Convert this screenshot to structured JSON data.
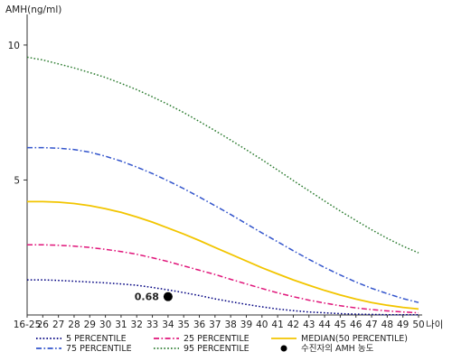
{
  "chart_data": {
    "type": "line",
    "ylabel": "AMH(ng/ml)",
    "xlabel": "나이",
    "ylim": [
      0,
      11
    ],
    "yticks": [
      {
        "value": 5,
        "label": "5"
      },
      {
        "value": 10,
        "label": "10"
      }
    ],
    "categories": [
      "16-25",
      "26",
      "27",
      "28",
      "29",
      "30",
      "31",
      "32",
      "33",
      "34",
      "35",
      "36",
      "37",
      "38",
      "39",
      "40",
      "41",
      "42",
      "43",
      "44",
      "45",
      "46",
      "47",
      "48",
      "49",
      "50"
    ],
    "series": [
      {
        "name": "5 PERCENTILE",
        "color": "#000080",
        "dash": "dot",
        "values": [
          1.3,
          1.3,
          1.28,
          1.25,
          1.22,
          1.19,
          1.15,
          1.1,
          1.02,
          0.93,
          0.83,
          0.72,
          0.6,
          0.49,
          0.39,
          0.3,
          0.22,
          0.16,
          0.11,
          0.08,
          0.05,
          0.03,
          0.02,
          0.01,
          0.01,
          0.01
        ]
      },
      {
        "name": "25 PERCENTILE",
        "color": "#e0157a",
        "dash": "dashdot",
        "values": [
          2.6,
          2.6,
          2.58,
          2.55,
          2.5,
          2.43,
          2.35,
          2.25,
          2.12,
          1.98,
          1.82,
          1.66,
          1.5,
          1.32,
          1.15,
          0.98,
          0.82,
          0.68,
          0.55,
          0.44,
          0.34,
          0.26,
          0.2,
          0.15,
          0.11,
          0.08
        ]
      },
      {
        "name": "MEDIAN(50 PERCENTILE)",
        "color": "#f2c500",
        "dash": "solid",
        "values": [
          4.2,
          4.2,
          4.18,
          4.13,
          4.05,
          3.94,
          3.8,
          3.63,
          3.44,
          3.22,
          3.0,
          2.76,
          2.5,
          2.25,
          2.0,
          1.75,
          1.52,
          1.3,
          1.1,
          0.91,
          0.74,
          0.59,
          0.46,
          0.36,
          0.28,
          0.22
        ]
      },
      {
        "name": "75 PERCENTILE",
        "color": "#3355cc",
        "dash": "dashdot",
        "values": [
          6.2,
          6.2,
          6.18,
          6.13,
          6.03,
          5.88,
          5.7,
          5.48,
          5.24,
          4.97,
          4.68,
          4.37,
          4.05,
          3.72,
          3.38,
          3.04,
          2.71,
          2.38,
          2.06,
          1.76,
          1.48,
          1.22,
          0.99,
          0.79,
          0.61,
          0.46
        ]
      },
      {
        "name": "95 PERCENTILE",
        "color": "#2e7d32",
        "dash": "dot",
        "values": [
          9.55,
          9.45,
          9.3,
          9.15,
          8.98,
          8.8,
          8.58,
          8.35,
          8.08,
          7.8,
          7.5,
          7.17,
          6.83,
          6.48,
          6.12,
          5.75,
          5.37,
          4.98,
          4.6,
          4.22,
          3.85,
          3.5,
          3.16,
          2.84,
          2.55,
          2.3
        ]
      }
    ],
    "marker": {
      "name": "수진자의 AMH 농도",
      "x": "34",
      "y": 0.68,
      "label": "0.68",
      "color": "#000000"
    },
    "legend_position": "bottom"
  }
}
